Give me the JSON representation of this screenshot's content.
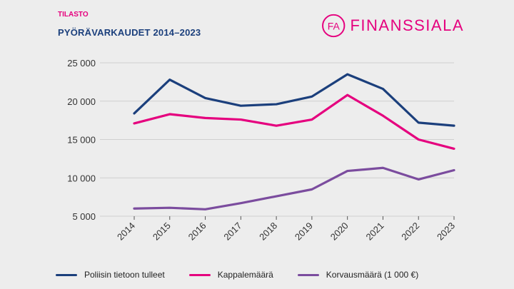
{
  "header": {
    "kicker": "TILASTO",
    "title": "PYÖRÄVARKAUDET 2014–2023"
  },
  "logo": {
    "mark_text": "FA",
    "text": "FINANSSIALA",
    "color": "#e5007e"
  },
  "chart_data": {
    "type": "line",
    "x": [
      "2014",
      "2015",
      "2016",
      "2017",
      "2018",
      "2019",
      "2020",
      "2021",
      "2022",
      "2023"
    ],
    "ylim": [
      5000,
      25000
    ],
    "yticks": [
      5000,
      10000,
      15000,
      20000,
      25000
    ],
    "ytick_labels": [
      "5 000",
      "10 000",
      "15 000",
      "20 000",
      "25 000"
    ],
    "grid": "horizontal",
    "legend_position": "bottom",
    "series": [
      {
        "name": "Poliisin tietoon tulleet",
        "color": "#1b3f7c",
        "values": [
          18400,
          22800,
          20400,
          19400,
          19600,
          20600,
          23500,
          21600,
          17200,
          16800
        ]
      },
      {
        "name": "Kappalemäärä",
        "color": "#e5007e",
        "values": [
          17100,
          18300,
          17800,
          17600,
          16800,
          17600,
          20800,
          18100,
          15000,
          13800
        ]
      },
      {
        "name": "Korvausmäärä (1 000 €)",
        "color": "#7b4c9e",
        "values": [
          6000,
          6100,
          5900,
          6700,
          7600,
          8500,
          10900,
          11300,
          9800,
          11000
        ]
      }
    ]
  }
}
